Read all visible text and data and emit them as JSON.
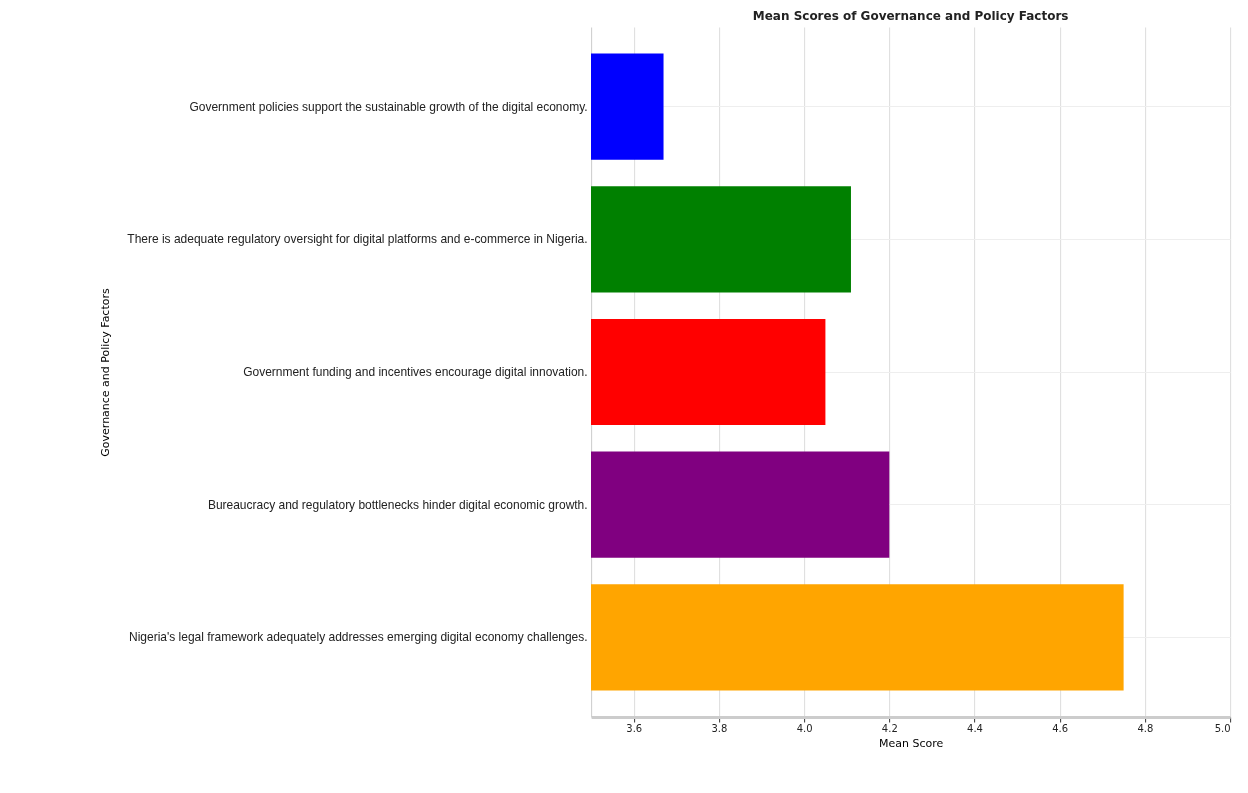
{
  "chart_data": {
    "type": "bar",
    "orientation": "horizontal",
    "title": "Mean Scores of Governance and Policy Factors",
    "xlabel": "Mean Score",
    "ylabel": "Governance and Policy Factors",
    "categories": [
      "Government policies support the sustainable growth of the digital economy.",
      "There is adequate regulatory oversight for digital platforms and e-commerce in Nigeria.",
      "Government funding and incentives encourage digital innovation.",
      "Bureaucracy and regulatory bottlenecks hinder digital economic growth.",
      "Nigeria's legal framework adequately addresses emerging digital economy challenges."
    ],
    "values": [
      3.67,
      4.11,
      4.05,
      4.2,
      4.75
    ],
    "colors": [
      "#0000ff",
      "#008000",
      "#ff0000",
      "#800080",
      "#ffa500"
    ],
    "xlim": [
      3.5,
      5.0
    ],
    "xticks": [
      3.6,
      3.8,
      {
        "value": 4,
        "label": "4.0"
      },
      4.2,
      4.4,
      4.6,
      4.8,
      {
        "value": 5,
        "label": "5.0"
      }
    ],
    "grid": true
  }
}
